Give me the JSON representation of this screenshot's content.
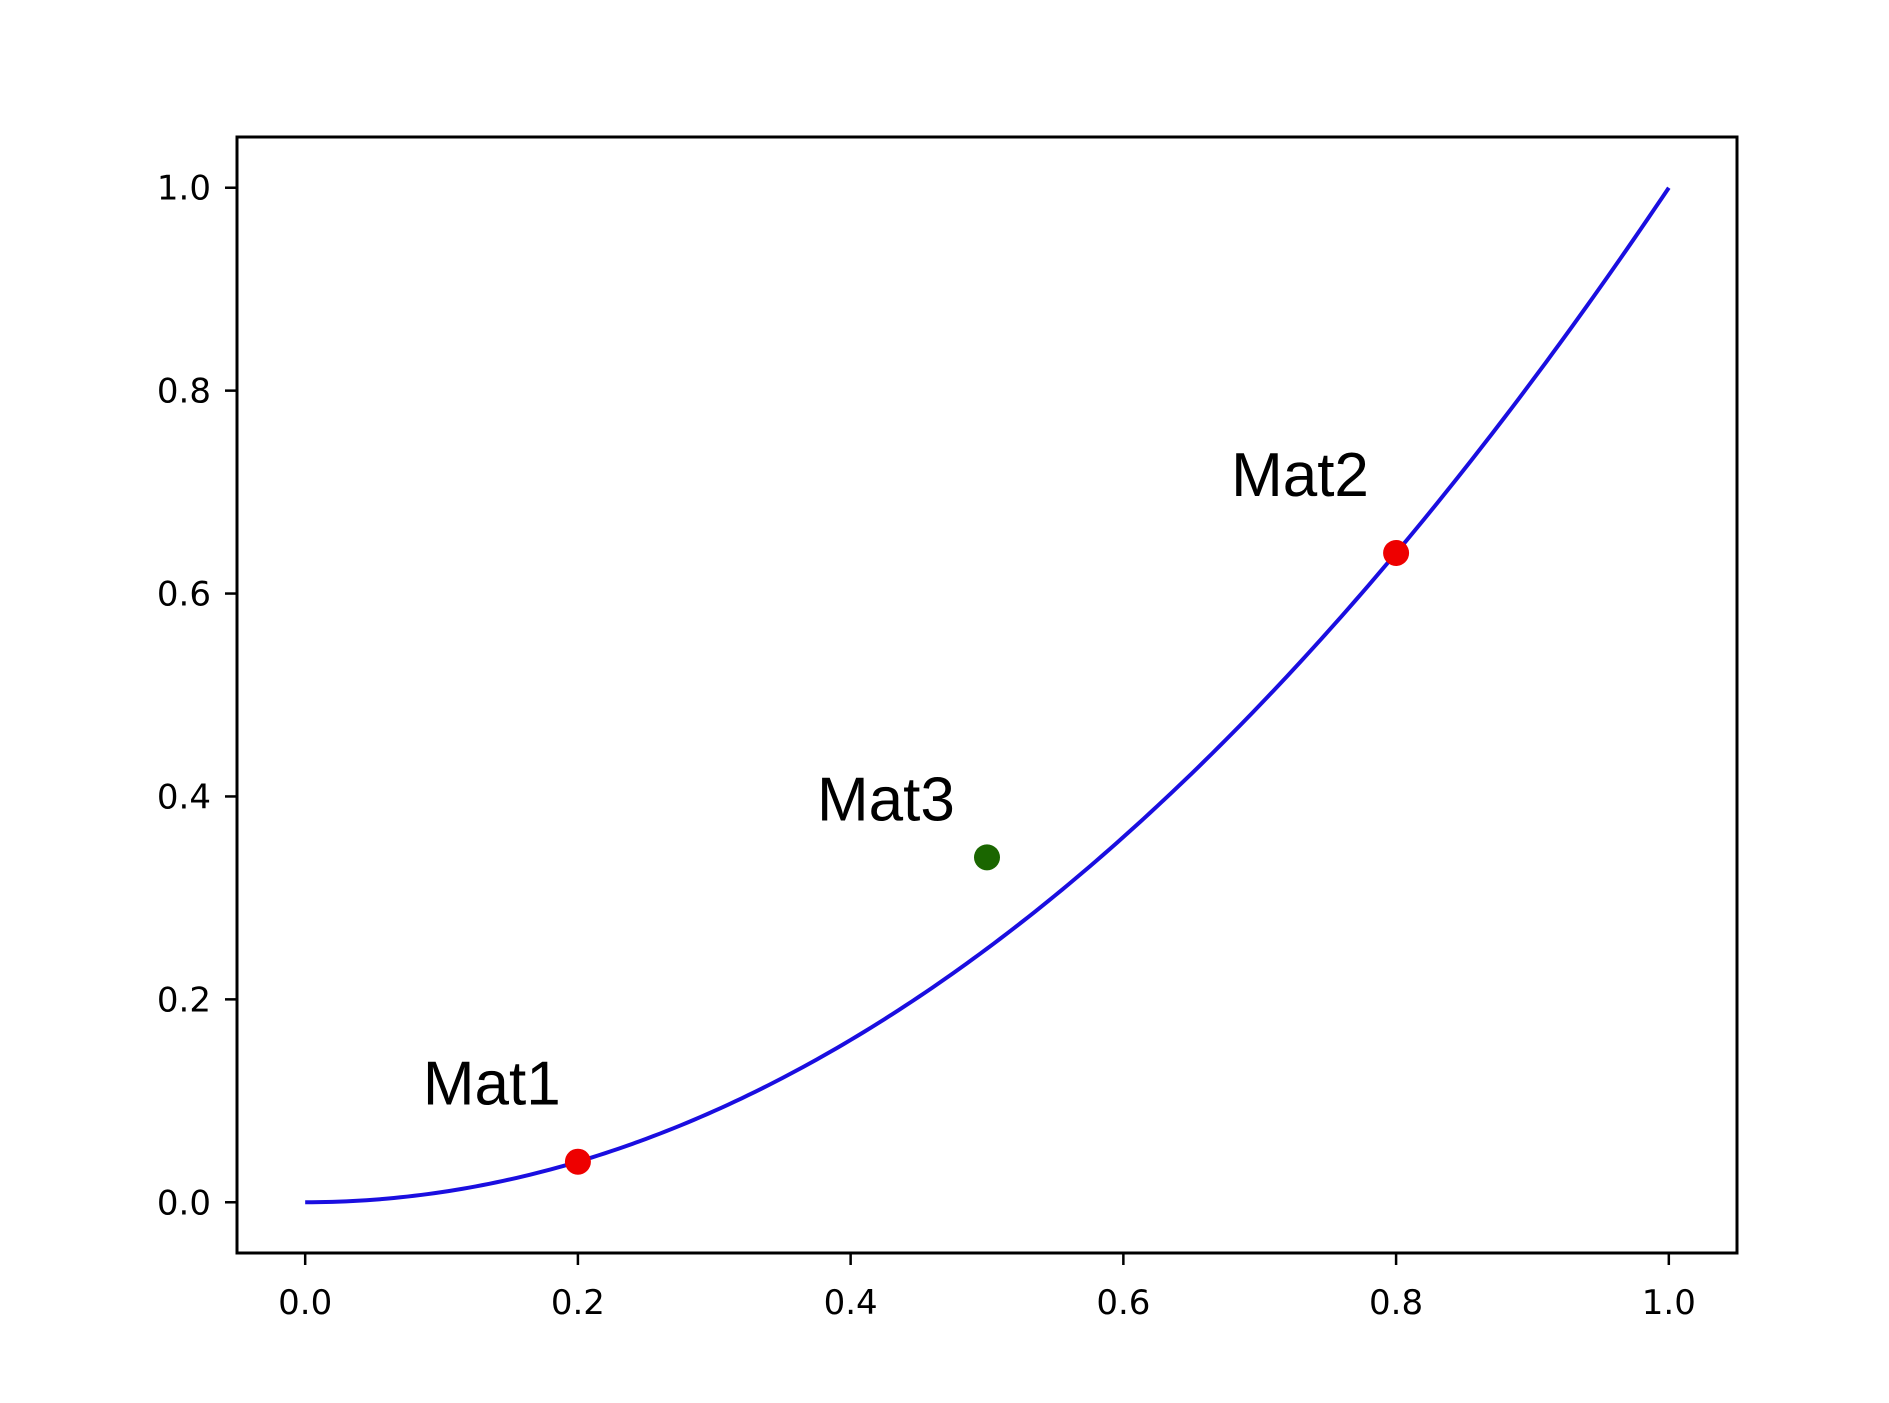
{
  "chart_data": {
    "type": "scatter",
    "title": "",
    "xlabel": "",
    "ylabel": "",
    "xlim": [
      -0.05,
      1.05
    ],
    "ylim": [
      -0.05,
      1.05
    ],
    "x_ticks": [
      0.0,
      0.2,
      0.4,
      0.6,
      0.8,
      1.0
    ],
    "y_ticks": [
      0.0,
      0.2,
      0.4,
      0.6,
      0.8,
      1.0
    ],
    "x_tick_labels": [
      "0.0",
      "0.2",
      "0.4",
      "0.6",
      "0.8",
      "1.0"
    ],
    "y_tick_labels": [
      "0.0",
      "0.2",
      "0.4",
      "0.6",
      "0.8",
      "1.0"
    ],
    "grid": false,
    "legend": "none",
    "curve": {
      "function": "y = x^2",
      "x_range": [
        0.0,
        1.0
      ],
      "color": "#1a0ee0"
    },
    "points": [
      {
        "label": "Mat1",
        "x": 0.2,
        "y": 0.04,
        "color": "#ee0000"
      },
      {
        "label": "Mat2",
        "x": 0.8,
        "y": 0.64,
        "color": "#ee0000"
      },
      {
        "label": "Mat3",
        "x": 0.5,
        "y": 0.34,
        "color": "#1a6600"
      }
    ]
  }
}
